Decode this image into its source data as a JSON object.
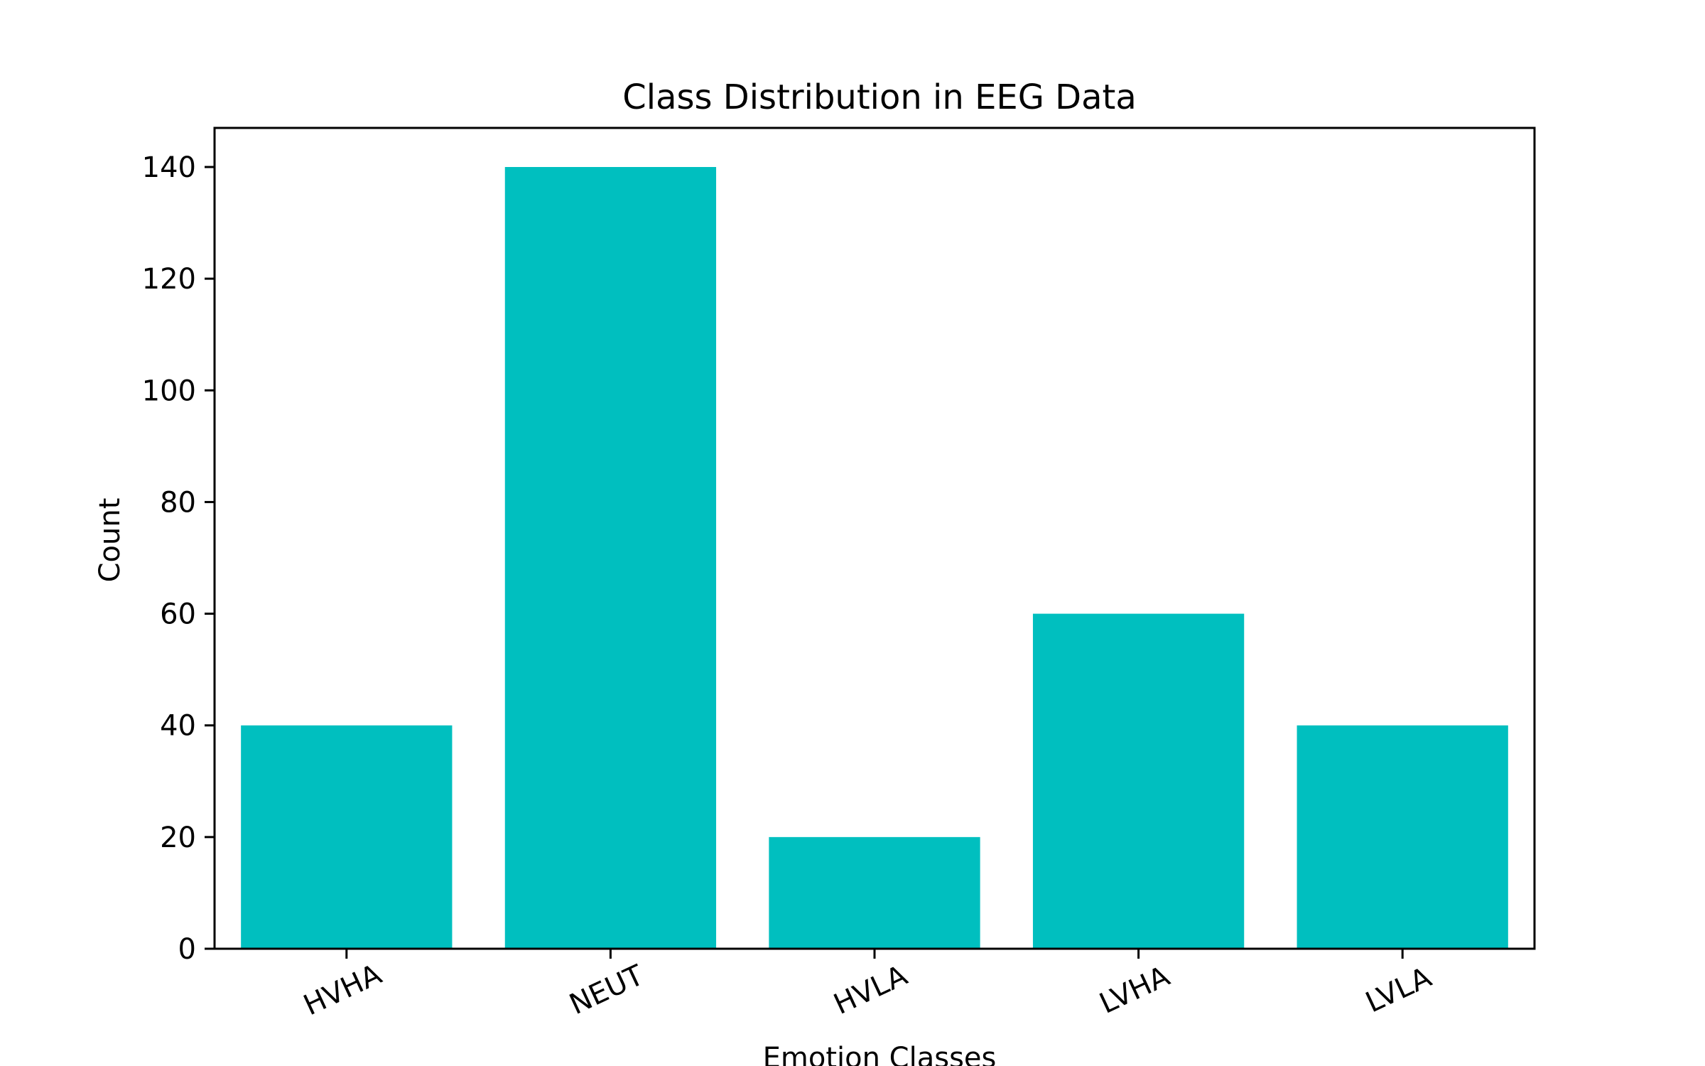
{
  "chart_data": {
    "type": "bar",
    "title": "Class Distribution in EEG Data",
    "xlabel": "Emotion Classes",
    "ylabel": "Count",
    "categories": [
      "HVHA",
      "NEUT",
      "HVLA",
      "LVHA",
      "LVLA"
    ],
    "values": [
      40,
      140,
      20,
      60,
      40
    ],
    "ylim": [
      0,
      147
    ],
    "yticks": [
      0,
      20,
      40,
      60,
      80,
      100,
      120,
      140
    ],
    "bar_color": "#00bfbf",
    "grid": false,
    "legend": "none",
    "xtick_rotation_degrees": 25
  }
}
